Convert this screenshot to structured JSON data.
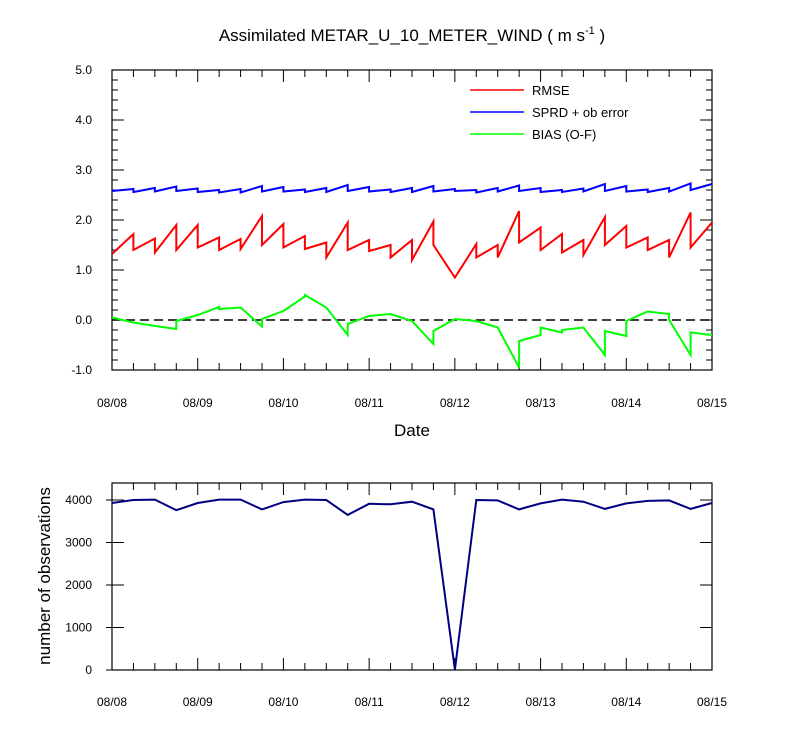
{
  "chart_data": [
    {
      "type": "line",
      "title_main": "Assimilated METAR_U_10_METER_WIND ( m s",
      "title_sup": "-1",
      "title_end": " )",
      "xlabel": "Date",
      "ylabel": "",
      "ylim": [
        -1.0,
        5.0
      ],
      "xlim": [
        0,
        7
      ],
      "yticks": [
        -1.0,
        0.0,
        1.0,
        2.0,
        3.0,
        4.0,
        5.0
      ],
      "ytick_labels": [
        "-1.0",
        "0.0",
        "1.0",
        "2.0",
        "3.0",
        "4.0",
        "5.0"
      ],
      "xticks": [
        0,
        1,
        2,
        3,
        4,
        5,
        6,
        7
      ],
      "xtick_labels": [
        "08/08",
        "08/09",
        "08/10",
        "08/11",
        "08/12",
        "08/13",
        "08/14",
        "08/15"
      ],
      "zero_line": 0.0,
      "series": [
        {
          "name": "RMSE",
          "color": "#ff0000",
          "x": [
            0,
            0.25,
            0.25,
            0.5,
            0.5,
            0.75,
            0.75,
            1,
            1,
            1.25,
            1.25,
            1.5,
            1.5,
            1.75,
            1.75,
            2,
            2,
            2.25,
            2.25,
            2.5,
            2.5,
            2.75,
            2.75,
            3,
            3,
            3.25,
            3.25,
            3.5,
            3.5,
            3.75,
            3.75,
            4,
            4.25,
            4.25,
            4.5,
            4.5,
            4.75,
            4.75,
            5,
            5,
            5.25,
            5.25,
            5.5,
            5.5,
            5.75,
            5.75,
            6,
            6,
            6.25,
            6.25,
            6.5,
            6.5,
            6.75,
            6.75,
            7
          ],
          "values": [
            1.32,
            1.72,
            1.4,
            1.63,
            1.35,
            1.9,
            1.4,
            1.9,
            1.45,
            1.65,
            1.4,
            1.62,
            1.42,
            2.08,
            1.5,
            1.92,
            1.45,
            1.68,
            1.42,
            1.55,
            1.25,
            1.95,
            1.4,
            1.6,
            1.38,
            1.5,
            1.25,
            1.6,
            1.2,
            1.97,
            1.5,
            0.85,
            1.52,
            1.25,
            1.5,
            1.25,
            2.18,
            1.55,
            1.85,
            1.4,
            1.72,
            1.35,
            1.6,
            1.3,
            2.06,
            1.5,
            1.88,
            1.45,
            1.65,
            1.4,
            1.6,
            1.25,
            2.15,
            1.45,
            1.95
          ]
        },
        {
          "name": "SPRD + ob error",
          "color": "#0000ff",
          "x": [
            0,
            0.25,
            0.25,
            0.5,
            0.5,
            0.75,
            0.75,
            1,
            1,
            1.25,
            1.25,
            1.5,
            1.5,
            1.75,
            1.75,
            2,
            2,
            2.25,
            2.25,
            2.5,
            2.5,
            2.75,
            2.75,
            3,
            3,
            3.25,
            3.25,
            3.5,
            3.5,
            3.75,
            3.75,
            4,
            4,
            4.25,
            4.25,
            4.5,
            4.5,
            4.75,
            4.75,
            5,
            5,
            5.25,
            5.25,
            5.5,
            5.5,
            5.75,
            5.75,
            6,
            6,
            6.25,
            6.25,
            6.5,
            6.5,
            6.75,
            6.75,
            7
          ],
          "values": [
            2.58,
            2.62,
            2.56,
            2.64,
            2.57,
            2.67,
            2.58,
            2.63,
            2.56,
            2.6,
            2.55,
            2.62,
            2.55,
            2.68,
            2.57,
            2.66,
            2.57,
            2.61,
            2.56,
            2.64,
            2.56,
            2.7,
            2.58,
            2.66,
            2.57,
            2.61,
            2.56,
            2.64,
            2.56,
            2.68,
            2.57,
            2.62,
            2.58,
            2.6,
            2.55,
            2.64,
            2.57,
            2.69,
            2.58,
            2.64,
            2.56,
            2.6,
            2.56,
            2.63,
            2.57,
            2.72,
            2.58,
            2.68,
            2.57,
            2.61,
            2.56,
            2.64,
            2.57,
            2.73,
            2.6,
            2.72
          ]
        },
        {
          "name": "BIAS (O-F)",
          "color": "#00ff00",
          "x": [
            0,
            0.25,
            0.5,
            0.5,
            0.75,
            0.75,
            1,
            1.25,
            1.25,
            1.5,
            1.5,
            1.75,
            1.75,
            2,
            2.25,
            2.25,
            2.5,
            2.75,
            2.75,
            3,
            3.25,
            3.5,
            3.75,
            3.75,
            4,
            4.25,
            4.5,
            4.75,
            4.75,
            5,
            5,
            5.25,
            5.25,
            5.5,
            5.75,
            5.75,
            6,
            6,
            6.25,
            6.5,
            6.5,
            6.75,
            6.75,
            7
          ],
          "values": [
            0.05,
            -0.05,
            -0.12,
            -0.12,
            -0.18,
            -0.02,
            0.1,
            0.26,
            0.22,
            0.25,
            0.25,
            -0.13,
            0.02,
            0.18,
            0.47,
            0.5,
            0.25,
            -0.3,
            -0.08,
            0.08,
            0.12,
            -0.02,
            -0.48,
            -0.22,
            0.02,
            -0.02,
            -0.15,
            -0.95,
            -0.42,
            -0.3,
            -0.15,
            -0.25,
            -0.2,
            -0.15,
            -0.7,
            -0.22,
            -0.32,
            -0.02,
            0.17,
            0.12,
            0.0,
            -0.7,
            -0.25,
            -0.3
          ]
        }
      ]
    },
    {
      "type": "line",
      "title": "",
      "xlabel": "",
      "ylabel": "number of observations",
      "ylim": [
        0,
        4400
      ],
      "xlim": [
        0,
        7
      ],
      "yticks": [
        0,
        1000,
        2000,
        3000,
        4000
      ],
      "ytick_labels": [
        "0",
        "1000",
        "2000",
        "3000",
        "4000"
      ],
      "xticks": [
        0,
        1,
        2,
        3,
        4,
        5,
        6,
        7
      ],
      "xtick_labels": [
        "08/08",
        "08/09",
        "08/10",
        "08/11",
        "08/12",
        "08/13",
        "08/14",
        "08/15"
      ],
      "series": [
        {
          "name": "number of observations",
          "color": "#000080",
          "x": [
            0,
            0.25,
            0.5,
            0.75,
            1,
            1.25,
            1.5,
            1.75,
            2,
            2.25,
            2.5,
            2.75,
            3,
            3.25,
            3.5,
            3.75,
            4,
            4.25,
            4.5,
            4.75,
            5,
            5.25,
            5.5,
            5.75,
            6,
            6.25,
            6.5,
            6.75,
            7
          ],
          "values": [
            3930,
            4000,
            4010,
            3760,
            3930,
            4010,
            4010,
            3780,
            3950,
            4010,
            4000,
            3650,
            3910,
            3900,
            3960,
            3780,
            10,
            4000,
            3990,
            3780,
            3920,
            4010,
            3960,
            3790,
            3920,
            3980,
            3990,
            3790,
            3930
          ]
        }
      ]
    }
  ]
}
